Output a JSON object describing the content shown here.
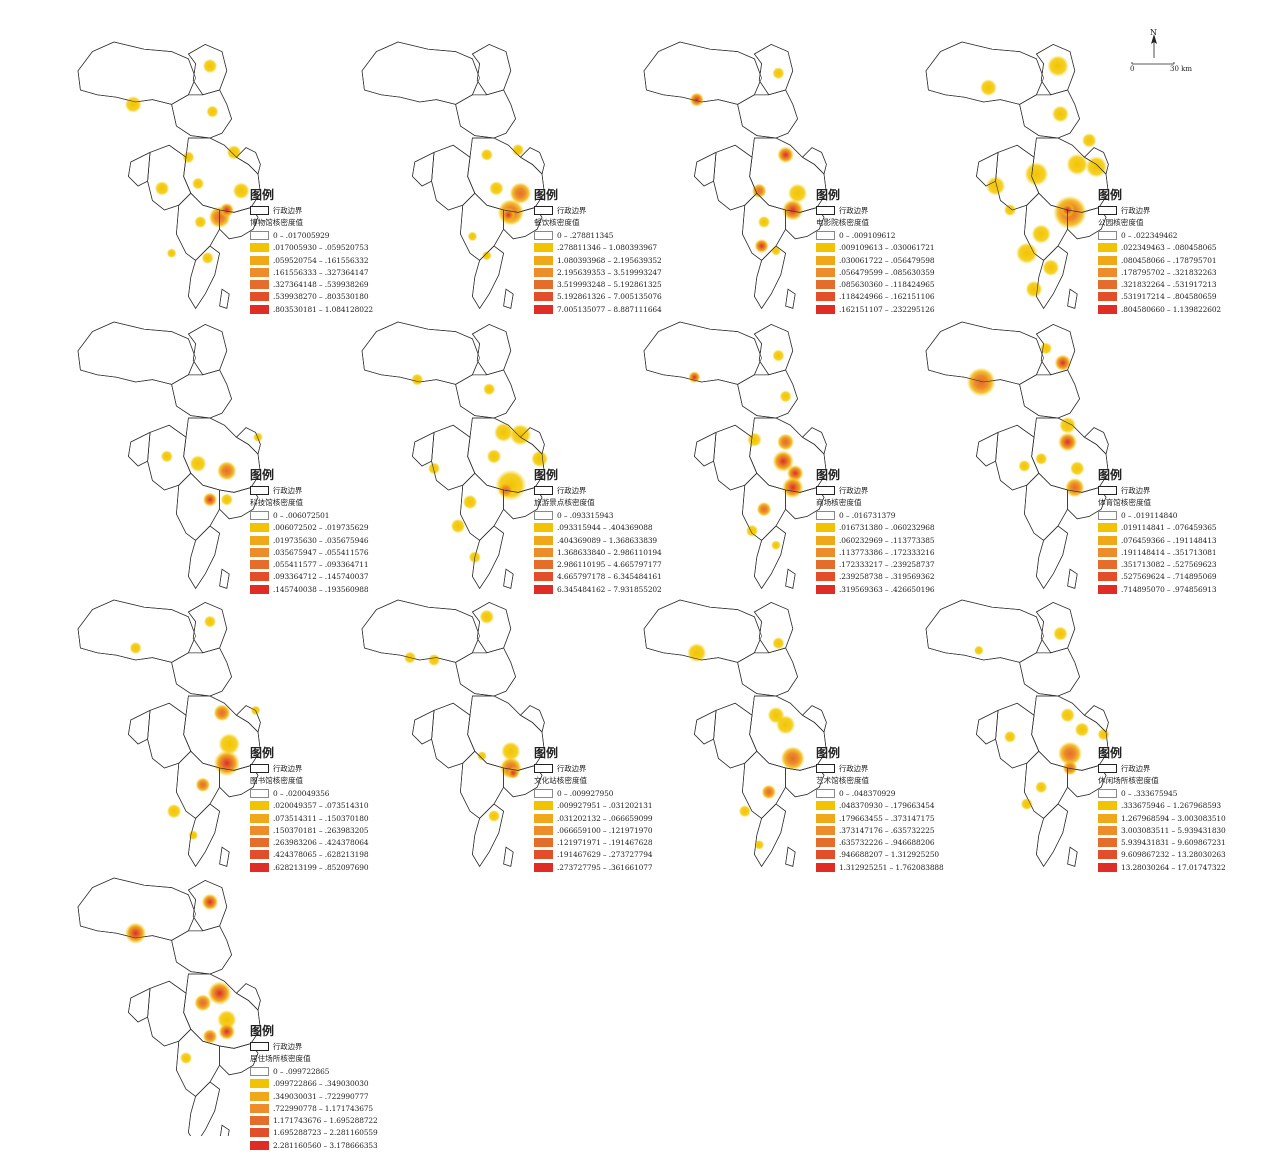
{
  "legend_common": {
    "title": "图例",
    "boundary_label": "行政边界"
  },
  "scale": {
    "north": "N",
    "zero": "0",
    "distance": "30 km"
  },
  "colors": {
    "class1": "#ffffff",
    "class2": "#f2c300",
    "class3": "#f0a81b",
    "class4": "#ec8c2a",
    "class5": "#e56d2c",
    "class6": "#df2d26",
    "boundary": "#222222"
  },
  "panels": [
    {
      "metric": "博物馆核密度值",
      "classes": [
        "0 – .017005929",
        ".017005930 – .059520753",
        ".059520754 – .161556332",
        ".161556333 – .327364147",
        ".327364148 – .539938269",
        ".539938270 – .803530180",
        ".803530181 – 1.084128022"
      ]
    },
    {
      "metric": "餐饮核密度值",
      "classes": [
        "0 – .278811345",
        ".278811346 – 1.080393967",
        "1.080393968 – 2.195639352",
        "2.195639353 – 3.519993247",
        "3.519993248 – 5.192861325",
        "5.192861326 – 7.005135076",
        "7.005135077 – 8.887111664"
      ]
    },
    {
      "metric": "电影院核密度值",
      "classes": [
        "0 – .009109612",
        ".009109613 – .030061721",
        ".030061722 – .056479598",
        ".056479599 – .085630359",
        ".085630360 – .118424965",
        ".118424966 – .162151106",
        ".162151107 – .232295126"
      ]
    },
    {
      "metric": "公园核密度值",
      "classes": [
        "0 – .022349462",
        ".022349463 – .080458065",
        ".080458066 – .178795701",
        ".178795702 – .321832263",
        ".321832264 – .531917213",
        ".531917214 – .804580659",
        ".804580660 – 1.139822602"
      ]
    },
    {
      "metric": "科技馆核密度值",
      "classes": [
        "0 – .006072501",
        ".006072502 – .019735629",
        ".019735630 – .035675946",
        ".035675947 – .055411576",
        ".055411577 – .093364711",
        ".093364712 – .145740037",
        ".145740038 – .193560988"
      ]
    },
    {
      "metric": "旅游景点核密度值",
      "classes": [
        "0 – .093315943",
        ".093315944 – .404369088",
        ".404369089 – 1.368633839",
        "1.368633840 – 2.986110194",
        "2.986110195 – 4.665797177",
        "4.665797178 – 6.345484161",
        "6.345484162 – 7.931855202"
      ]
    },
    {
      "metric": "商场核密度值",
      "classes": [
        "0 – .016731379",
        ".016731380 – .060232968",
        ".060232969 – .113773385",
        ".113773386 – .172333216",
        ".172333217 – .239258737",
        ".239258738 – .319569362",
        ".319569363 – .426650196"
      ]
    },
    {
      "metric": "体育馆核密度值",
      "classes": [
        "0 – .019114840",
        ".019114841 – .076459365",
        ".076459366 – .191148413",
        ".191148414 – .351713081",
        ".351713082 – .527569623",
        ".527569624 – .714895069",
        ".714895070 – .974856913"
      ]
    },
    {
      "metric": "图书馆核密度值",
      "classes": [
        "0 – .020049356",
        ".020049357 – .073514310",
        ".073514311 – .150370180",
        ".150370181 – .263983205",
        ".263983206 – .424378064",
        ".424378065 – .628213198",
        ".628213199 – .852097690"
      ]
    },
    {
      "metric": "文化站核密度值",
      "classes": [
        "0 – .009927950",
        ".009927951 – .031202131",
        ".031202132 – .066659099",
        ".066659100 – .121971970",
        ".121971971 – .191467628",
        ".191467629 – .273727794",
        ".273727795 – .361661077"
      ]
    },
    {
      "metric": "艺术馆核密度值",
      "classes": [
        "0 – .048370929",
        ".048370930 – .179663454",
        ".179663455 – .373147175",
        ".373147176 – .635732225",
        ".635732226 – .946688206",
        ".946688207 – 1.312925250",
        "1.312925251 – 1.762083888"
      ]
    },
    {
      "metric": "休闲场所核密度值",
      "classes": [
        "0 – .333675945",
        ".333675946 – 1.267968593",
        "1.267968594 – 3.003083510",
        "3.003083511 – 5.939431830",
        "5.939431831 – 9.609867231",
        "9.609867232 – 13.28030263",
        "13.28030264 – 17.01747322"
      ]
    },
    {
      "metric": "居住场所核密度值",
      "classes": [
        "0 – .099722865",
        ".099722866 – .349030030",
        ".349030031 – .722990777",
        ".722990778 – 1.171743675",
        "1.171743676 – 1.695288722",
        "1.695288723 – 2.281160559",
        "2.281160560 – 3.178666353"
      ]
    }
  ]
}
